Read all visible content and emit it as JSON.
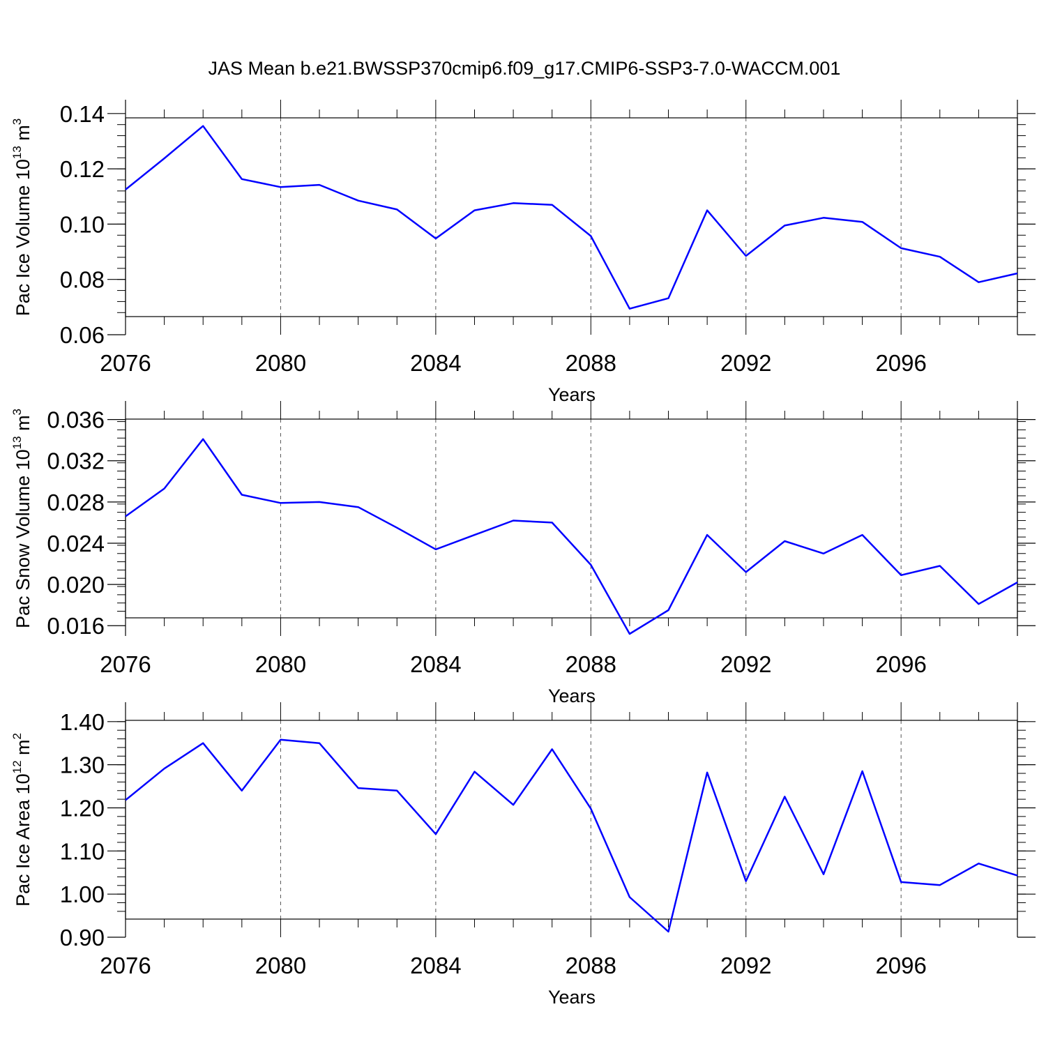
{
  "title": "JAS Mean b.e21.BWSSP370cmip6.f09_g17.CMIP6-SSP3-7.0-WACCM.001",
  "colors": {
    "line": "#0000ff",
    "axis": "#000000",
    "grid": "#555555"
  },
  "chart_data": [
    {
      "type": "line",
      "xlabel": "Years",
      "ylabel_text": "Pac Ice Volume 10",
      "ylabel_exp": "13",
      "ylabel_unit": " m",
      "ylabel_unit_exp": "3",
      "xlim": [
        2076,
        2099
      ],
      "ylim": [
        0.06,
        0.145
      ],
      "xticks": [
        2076,
        2080,
        2084,
        2088,
        2092,
        2096
      ],
      "xtick_labels": [
        "2076",
        "2080",
        "2084",
        "2088",
        "2092",
        "2096"
      ],
      "yticks": [
        0.06,
        0.08,
        0.1,
        0.12,
        0.14
      ],
      "ytick_labels": [
        "0.06",
        "0.08",
        "0.10",
        "0.12",
        "0.14"
      ],
      "yminor_step": 0.004,
      "x": [
        2076,
        2077,
        2078,
        2079,
        2080,
        2081,
        2082,
        2083,
        2084,
        2085,
        2086,
        2087,
        2088,
        2089,
        2090,
        2091,
        2092,
        2093,
        2094,
        2095,
        2096,
        2097,
        2098,
        2099
      ],
      "y": [
        0.1125,
        0.1238,
        0.1355,
        0.1163,
        0.1134,
        0.1142,
        0.1085,
        0.1053,
        0.0948,
        0.105,
        0.1076,
        0.107,
        0.0957,
        0.0694,
        0.0732,
        0.105,
        0.0885,
        0.0995,
        0.1023,
        0.1008,
        0.0913,
        0.0882,
        0.079,
        0.0822
      ]
    },
    {
      "type": "line",
      "xlabel": "Years",
      "ylabel_text": "Pac Snow Volume 10",
      "ylabel_exp": "13",
      "ylabel_unit": " m",
      "ylabel_unit_exp": "3",
      "xlim": [
        2076,
        2099
      ],
      "ylim": [
        0.015,
        0.0378
      ],
      "xticks": [
        2076,
        2080,
        2084,
        2088,
        2092,
        2096
      ],
      "xtick_labels": [
        "2076",
        "2080",
        "2084",
        "2088",
        "2092",
        "2096"
      ],
      "yticks": [
        0.016,
        0.02,
        0.024,
        0.028,
        0.032,
        0.036
      ],
      "ytick_labels": [
        "0.016",
        "0.020",
        "0.024",
        "0.028",
        "0.032",
        "0.036"
      ],
      "yminor_step": 0.0008,
      "x": [
        2076,
        2077,
        2078,
        2079,
        2080,
        2081,
        2082,
        2083,
        2084,
        2085,
        2086,
        2087,
        2088,
        2089,
        2090,
        2091,
        2092,
        2093,
        2094,
        2095,
        2096,
        2097,
        2098,
        2099
      ],
      "y": [
        0.0266,
        0.0293,
        0.0341,
        0.0287,
        0.0279,
        0.028,
        0.0275,
        0.0255,
        0.0234,
        0.0248,
        0.0262,
        0.026,
        0.0219,
        0.0152,
        0.0175,
        0.0248,
        0.0212,
        0.0242,
        0.023,
        0.0248,
        0.0209,
        0.0218,
        0.0181,
        0.0202
      ]
    },
    {
      "type": "line",
      "xlabel": "Years",
      "ylabel_text": "Pac Ice Area 10",
      "ylabel_exp": "12",
      "ylabel_unit": " m",
      "ylabel_unit_exp": "2",
      "xlim": [
        2076,
        2099
      ],
      "ylim": [
        0.9,
        1.445
      ],
      "xticks": [
        2076,
        2080,
        2084,
        2088,
        2092,
        2096
      ],
      "xtick_labels": [
        "2076",
        "2080",
        "2084",
        "2088",
        "2092",
        "2096"
      ],
      "yticks": [
        0.9,
        1.0,
        1.1,
        1.2,
        1.3,
        1.4
      ],
      "ytick_labels": [
        "0.90",
        "1.00",
        "1.10",
        "1.20",
        "1.30",
        "1.40"
      ],
      "yminor_step": 0.02,
      "x": [
        2076,
        2077,
        2078,
        2079,
        2080,
        2081,
        2082,
        2083,
        2084,
        2085,
        2086,
        2087,
        2088,
        2089,
        2090,
        2091,
        2092,
        2093,
        2094,
        2095,
        2096,
        2097,
        2098,
        2099
      ],
      "y": [
        1.218,
        1.291,
        1.35,
        1.24,
        1.358,
        1.35,
        1.246,
        1.24,
        1.139,
        1.284,
        1.207,
        1.336,
        1.198,
        0.993,
        0.913,
        1.282,
        1.03,
        1.226,
        1.046,
        1.285,
        1.028,
        1.021,
        1.071,
        1.043
      ]
    }
  ]
}
